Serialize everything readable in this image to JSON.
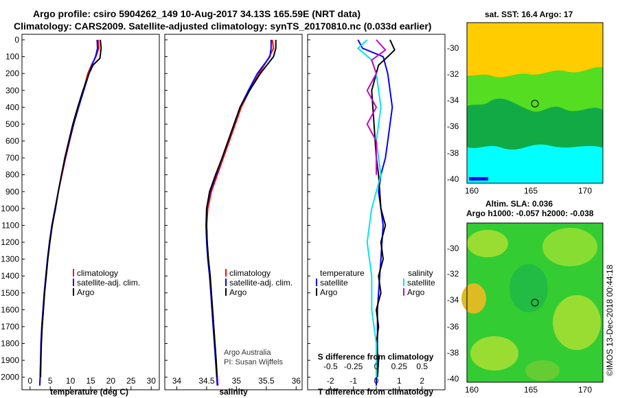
{
  "titles": {
    "line1": "Argo profile: csiro 5904262_149 10-Aug-2017 34.13S 165.59E (NRT data)",
    "line2": "Climatology: CARS2009. Satellite-adjusted climatology: synTS_20170810.nc (0.033d earlier)"
  },
  "credits": {
    "line1": "Argo Australia",
    "line2": "PI: Susan Wijffels"
  },
  "timestamp": "©IMOS 13-Dec-2018 00:44:18",
  "map_top": {
    "title": "sat. SST: 16.4 Argo: 17"
  },
  "map_bottom": {
    "title1": "Altim. SLA: 0.036",
    "title2": "Argo h1000: -0.057 h2000: -0.038"
  },
  "legend": {
    "climatology": "climatology",
    "satellite_adj": "satellite-adj. clim.",
    "argo": "Argo",
    "temperature": "temperature",
    "salinity": "salinity",
    "satellite": "satellite"
  },
  "colors": {
    "climatology": "#ff0000",
    "satellite": "#0000ff",
    "argo": "#000000",
    "sal_satellite": "#00e5e5",
    "sal_argo": "#cc00cc"
  },
  "chart_data": [
    {
      "type": "line",
      "xlabel": "temperature (deg C)",
      "xlim": [
        -2,
        32
      ],
      "xticks": [
        "0",
        "5",
        "10",
        "15",
        "20",
        "25",
        "30"
      ],
      "ylim": [
        0,
        2050
      ],
      "yticks": [
        "0",
        "100",
        "200",
        "300",
        "400",
        "500",
        "600",
        "700",
        "800",
        "900",
        "1000",
        "1100",
        "1200",
        "1300",
        "1400",
        "1500",
        "1600",
        "1700",
        "1800",
        "1900",
        "2000"
      ],
      "series": [
        {
          "name": "climatology",
          "points": [
            [
              16.9,
              0
            ],
            [
              17.0,
              50
            ],
            [
              16.3,
              100
            ],
            [
              15.2,
              150
            ],
            [
              14.3,
              200
            ],
            [
              13.2,
              300
            ],
            [
              12.0,
              400
            ],
            [
              10.8,
              500
            ],
            [
              9.8,
              600
            ],
            [
              8.8,
              700
            ],
            [
              7.9,
              800
            ],
            [
              7.0,
              900
            ],
            [
              6.2,
              1000
            ],
            [
              5.5,
              1100
            ],
            [
              4.9,
              1200
            ],
            [
              4.4,
              1300
            ],
            [
              4.0,
              1400
            ],
            [
              3.6,
              1500
            ],
            [
              3.3,
              1600
            ],
            [
              3.0,
              1700
            ],
            [
              2.8,
              1800
            ],
            [
              2.6,
              1900
            ],
            [
              2.5,
              2000
            ],
            [
              2.4,
              2050
            ]
          ]
        },
        {
          "name": "satellite-adj. clim.",
          "points": [
            [
              16.6,
              0
            ],
            [
              16.7,
              50
            ],
            [
              16.2,
              100
            ],
            [
              15.3,
              150
            ],
            [
              14.6,
              200
            ],
            [
              13.3,
              300
            ],
            [
              12.0,
              400
            ],
            [
              10.8,
              500
            ],
            [
              9.7,
              600
            ],
            [
              8.7,
              700
            ],
            [
              7.8,
              800
            ],
            [
              7.0,
              900
            ],
            [
              6.2,
              1000
            ],
            [
              5.4,
              1100
            ],
            [
              4.8,
              1200
            ],
            [
              4.3,
              1300
            ],
            [
              3.9,
              1400
            ],
            [
              3.5,
              1500
            ],
            [
              3.2,
              1600
            ],
            [
              2.9,
              1700
            ],
            [
              2.7,
              1800
            ],
            [
              2.6,
              1900
            ],
            [
              2.5,
              2000
            ],
            [
              2.4,
              2050
            ]
          ]
        },
        {
          "name": "Argo",
          "points": [
            [
              17.4,
              0
            ],
            [
              17.6,
              50
            ],
            [
              17.3,
              110
            ],
            [
              15.6,
              150
            ],
            [
              14.6,
              200
            ],
            [
              13.1,
              300
            ],
            [
              11.8,
              400
            ],
            [
              10.6,
              500
            ],
            [
              9.6,
              600
            ],
            [
              8.6,
              700
            ],
            [
              7.8,
              800
            ],
            [
              7.0,
              900
            ],
            [
              6.3,
              1000
            ],
            [
              5.5,
              1100
            ],
            [
              4.9,
              1200
            ],
            [
              4.4,
              1300
            ],
            [
              4.0,
              1400
            ],
            [
              3.6,
              1500
            ],
            [
              3.3,
              1600
            ],
            [
              3.0,
              1700
            ],
            [
              2.8,
              1800
            ],
            [
              2.7,
              1900
            ],
            [
              2.6,
              2000
            ]
          ]
        }
      ]
    },
    {
      "type": "line",
      "xlabel": "salinity",
      "xlim": [
        33.8,
        36.1
      ],
      "xticks": [
        "34",
        "34.5",
        "35",
        "35.5",
        "36"
      ],
      "ylim": [
        0,
        2050
      ],
      "series": [
        {
          "name": "climatology",
          "points": [
            [
              35.6,
              0
            ],
            [
              35.62,
              50
            ],
            [
              35.55,
              100
            ],
            [
              35.38,
              200
            ],
            [
              35.22,
              300
            ],
            [
              35.08,
              400
            ],
            [
              34.98,
              500
            ],
            [
              34.88,
              600
            ],
            [
              34.78,
              700
            ],
            [
              34.68,
              800
            ],
            [
              34.58,
              900
            ],
            [
              34.52,
              1000
            ],
            [
              34.5,
              1100
            ],
            [
              34.51,
              1200
            ],
            [
              34.53,
              1300
            ],
            [
              34.56,
              1400
            ],
            [
              34.58,
              1500
            ],
            [
              34.6,
              1600
            ],
            [
              34.62,
              1700
            ],
            [
              34.64,
              1800
            ],
            [
              34.66,
              1900
            ],
            [
              34.68,
              2000
            ],
            [
              34.69,
              2050
            ]
          ]
        },
        {
          "name": "satellite-adj. clim.",
          "points": [
            [
              35.58,
              0
            ],
            [
              35.58,
              50
            ],
            [
              35.56,
              100
            ],
            [
              35.35,
              200
            ],
            [
              35.2,
              300
            ],
            [
              35.06,
              400
            ],
            [
              34.96,
              500
            ],
            [
              34.86,
              600
            ],
            [
              34.76,
              700
            ],
            [
              34.66,
              800
            ],
            [
              34.56,
              900
            ],
            [
              34.5,
              1000
            ],
            [
              34.49,
              1100
            ],
            [
              34.5,
              1200
            ],
            [
              34.52,
              1300
            ],
            [
              34.55,
              1400
            ],
            [
              34.57,
              1500
            ],
            [
              34.59,
              1600
            ],
            [
              34.61,
              1700
            ],
            [
              34.63,
              1800
            ],
            [
              34.65,
              1900
            ],
            [
              34.67,
              2000
            ],
            [
              34.68,
              2050
            ]
          ]
        },
        {
          "name": "Argo",
          "points": [
            [
              35.66,
              0
            ],
            [
              35.66,
              50
            ],
            [
              35.62,
              100
            ],
            [
              35.4,
              200
            ],
            [
              35.22,
              300
            ],
            [
              35.06,
              400
            ],
            [
              34.96,
              500
            ],
            [
              34.86,
              600
            ],
            [
              34.76,
              700
            ],
            [
              34.65,
              800
            ],
            [
              34.55,
              900
            ],
            [
              34.5,
              1000
            ],
            [
              34.5,
              1100
            ],
            [
              34.51,
              1200
            ],
            [
              34.53,
              1300
            ],
            [
              34.56,
              1400
            ],
            [
              34.58,
              1500
            ],
            [
              34.6,
              1600
            ],
            [
              34.62,
              1700
            ],
            [
              34.64,
              1800
            ],
            [
              34.66,
              1900
            ],
            [
              34.67,
              2000
            ]
          ]
        }
      ]
    },
    {
      "type": "line",
      "xlabel": "T difference from climatology",
      "xlabel2": "S difference from climatology",
      "xlim": [
        -3,
        3
      ],
      "xticks": [
        "-2",
        "-1",
        "0",
        "1",
        "2"
      ],
      "xticks2": [
        "-0.5",
        "-0.25",
        "0",
        "0.25",
        "0.5"
      ],
      "ylim": [
        0,
        2050
      ],
      "series": [
        {
          "name": "temperature satellite",
          "points": [
            [
              -0.8,
              0
            ],
            [
              -0.6,
              50
            ],
            [
              0.3,
              100
            ],
            [
              0.5,
              200
            ],
            [
              0.6,
              300
            ],
            [
              0.7,
              400
            ],
            [
              0.6,
              500
            ],
            [
              0.5,
              600
            ],
            [
              0.4,
              700
            ],
            [
              0.2,
              800
            ],
            [
              0.1,
              900
            ],
            [
              0.2,
              1000
            ],
            [
              0.3,
              1100
            ],
            [
              0.25,
              1200
            ],
            [
              0.2,
              1300
            ],
            [
              0.15,
              1400
            ],
            [
              0.1,
              1500
            ],
            [
              0.05,
              1600
            ],
            [
              0.05,
              1700
            ],
            [
              0.05,
              1800
            ],
            [
              0.05,
              1900
            ],
            [
              0.0,
              2000
            ],
            [
              0.0,
              2050
            ]
          ]
        },
        {
          "name": "temperature Argo",
          "points": [
            [
              0.6,
              0
            ],
            [
              0.8,
              60
            ],
            [
              0.5,
              100
            ],
            [
              0.1,
              150
            ],
            [
              -0.2,
              300
            ],
            [
              -0.1,
              500
            ],
            [
              0.0,
              700
            ],
            [
              0.1,
              800
            ],
            [
              0.2,
              1000
            ],
            [
              0.4,
              1100
            ],
            [
              0.2,
              1200
            ],
            [
              0.3,
              1300
            ],
            [
              0.1,
              1400
            ],
            [
              0.2,
              1500
            ],
            [
              0.0,
              1600
            ],
            [
              0.1,
              1700
            ],
            [
              0.0,
              1800
            ],
            [
              0.1,
              1900
            ],
            [
              0.05,
              2000
            ]
          ]
        },
        {
          "name": "salinity satellite",
          "points": [
            [
              -0.1,
              0
            ],
            [
              -0.2,
              50
            ],
            [
              -0.05,
              120
            ],
            [
              0.0,
              200
            ],
            [
              0.05,
              400
            ],
            [
              0.0,
              600
            ],
            [
              0.05,
              800
            ],
            [
              -0.05,
              1000
            ],
            [
              -0.1,
              1200
            ],
            [
              -0.05,
              1400
            ],
            [
              -0.05,
              1600
            ],
            [
              0.0,
              1800
            ],
            [
              0.0,
              2000
            ]
          ]
        },
        {
          "name": "salinity Argo",
          "points": [
            [
              0.0,
              0
            ],
            [
              0.1,
              60
            ],
            [
              -0.05,
              120
            ],
            [
              0.0,
              200
            ],
            [
              -0.1,
              300
            ],
            [
              0.0,
              400
            ],
            [
              -0.1,
              500
            ],
            [
              0.0,
              600
            ],
            [
              0.0,
              700
            ],
            [
              0.0,
              800
            ]
          ]
        }
      ]
    }
  ]
}
